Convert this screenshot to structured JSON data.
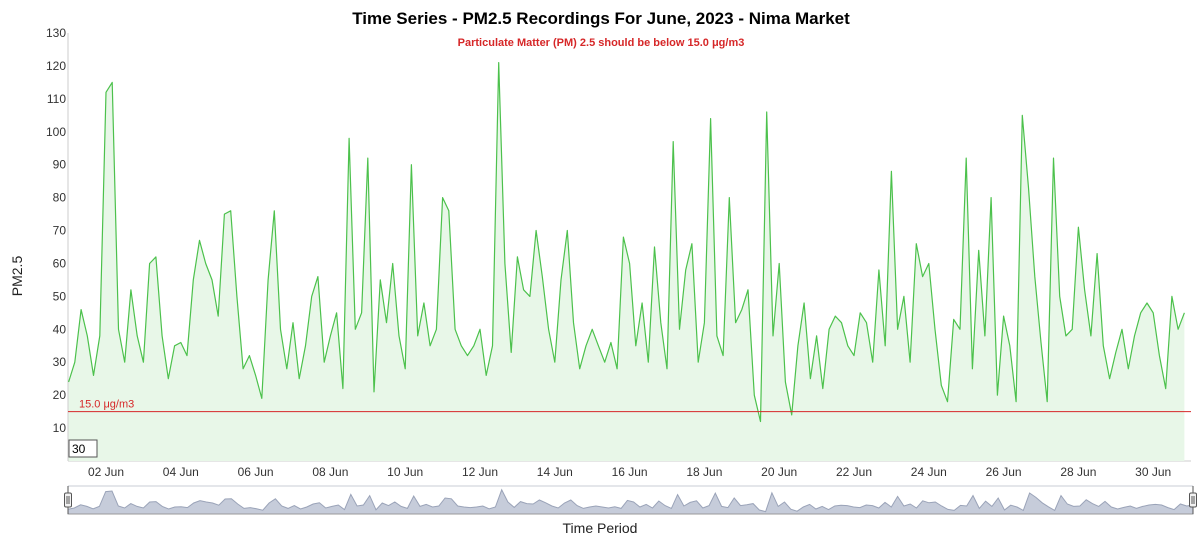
{
  "chart_data": {
    "type": "area",
    "title": "Time Series - PM2.5 Recordings For June, 2023 - Nima Market",
    "subtitle": "Particulate Matter (PM) 2.5 should be below 15.0 μg/m3",
    "xlabel": "Time Period",
    "ylabel": "PM2.5",
    "x_range": [
      "2023-06-01",
      "2023-06-30"
    ],
    "ylim": [
      0,
      130
    ],
    "y_ticks": [
      10,
      20,
      30,
      40,
      50,
      60,
      70,
      80,
      90,
      100,
      110,
      120,
      130
    ],
    "x_tick_labels": [
      "02 Jun",
      "04 Jun",
      "06 Jun",
      "08 Jun",
      "10 Jun",
      "12 Jun",
      "14 Jun",
      "16 Jun",
      "18 Jun",
      "20 Jun",
      "22 Jun",
      "24 Jun",
      "26 Jun",
      "28 Jun",
      "30 Jun"
    ],
    "threshold": {
      "value": 15.0,
      "label": "15.0 μg/m3",
      "color": "#d62728"
    },
    "value_box": "30",
    "series_color": "#4cc14c",
    "fill_color": "#e8f7e8",
    "navigator_color": "#9aa3b8",
    "series": [
      {
        "x": [
          "2023-06-01 00:00",
          "2023-06-01 04:00",
          "2023-06-01 08:00",
          "2023-06-01 12:00",
          "2023-06-01 16:00",
          "2023-06-01 20:00",
          "2023-06-02 00:00",
          "2023-06-02 04:00",
          "2023-06-02 08:00",
          "2023-06-02 12:00",
          "2023-06-02 16:00",
          "2023-06-02 20:00",
          "2023-06-03 00:00",
          "2023-06-03 04:00",
          "2023-06-03 08:00",
          "2023-06-03 12:00",
          "2023-06-03 16:00",
          "2023-06-03 20:00",
          "2023-06-04 00:00",
          "2023-06-04 04:00",
          "2023-06-04 08:00",
          "2023-06-04 12:00",
          "2023-06-04 16:00",
          "2023-06-04 20:00",
          "2023-06-05 00:00",
          "2023-06-05 04:00",
          "2023-06-05 08:00",
          "2023-06-05 12:00",
          "2023-06-05 16:00",
          "2023-06-05 20:00",
          "2023-06-06 00:00",
          "2023-06-06 04:00",
          "2023-06-06 08:00",
          "2023-06-06 12:00",
          "2023-06-06 16:00",
          "2023-06-06 20:00",
          "2023-06-07 00:00",
          "2023-06-07 04:00",
          "2023-06-07 08:00",
          "2023-06-07 12:00",
          "2023-06-07 16:00",
          "2023-06-07 20:00",
          "2023-06-08 00:00",
          "2023-06-08 04:00",
          "2023-06-08 08:00",
          "2023-06-08 12:00",
          "2023-06-08 16:00",
          "2023-06-08 20:00",
          "2023-06-09 00:00",
          "2023-06-09 04:00",
          "2023-06-09 08:00",
          "2023-06-09 12:00",
          "2023-06-09 16:00",
          "2023-06-09 20:00",
          "2023-06-10 00:00",
          "2023-06-10 04:00",
          "2023-06-10 08:00",
          "2023-06-10 12:00",
          "2023-06-10 16:00",
          "2023-06-10 20:00",
          "2023-06-11 00:00",
          "2023-06-11 04:00",
          "2023-06-11 08:00",
          "2023-06-11 12:00",
          "2023-06-11 16:00",
          "2023-06-11 20:00",
          "2023-06-12 00:00",
          "2023-06-12 04:00",
          "2023-06-12 08:00",
          "2023-06-12 12:00",
          "2023-06-12 16:00",
          "2023-06-12 20:00",
          "2023-06-13 00:00",
          "2023-06-13 04:00",
          "2023-06-13 08:00",
          "2023-06-13 12:00",
          "2023-06-13 16:00",
          "2023-06-13 20:00",
          "2023-06-14 00:00",
          "2023-06-14 04:00",
          "2023-06-14 08:00",
          "2023-06-14 12:00",
          "2023-06-14 16:00",
          "2023-06-14 20:00",
          "2023-06-15 00:00",
          "2023-06-15 04:00",
          "2023-06-15 08:00",
          "2023-06-15 12:00",
          "2023-06-15 16:00",
          "2023-06-15 20:00",
          "2023-06-16 00:00",
          "2023-06-16 04:00",
          "2023-06-16 08:00",
          "2023-06-16 12:00",
          "2023-06-16 16:00",
          "2023-06-16 20:00",
          "2023-06-17 00:00",
          "2023-06-17 04:00",
          "2023-06-17 08:00",
          "2023-06-17 12:00",
          "2023-06-17 16:00",
          "2023-06-17 20:00",
          "2023-06-18 00:00",
          "2023-06-18 04:00",
          "2023-06-18 08:00",
          "2023-06-18 12:00",
          "2023-06-18 16:00",
          "2023-06-18 20:00",
          "2023-06-19 00:00",
          "2023-06-19 04:00",
          "2023-06-19 08:00",
          "2023-06-19 12:00",
          "2023-06-19 16:00",
          "2023-06-19 20:00",
          "2023-06-20 00:00",
          "2023-06-20 04:00",
          "2023-06-20 08:00",
          "2023-06-20 12:00",
          "2023-06-20 16:00",
          "2023-06-20 20:00",
          "2023-06-21 00:00",
          "2023-06-21 04:00",
          "2023-06-21 08:00",
          "2023-06-21 12:00",
          "2023-06-21 16:00",
          "2023-06-21 20:00",
          "2023-06-22 00:00",
          "2023-06-22 04:00",
          "2023-06-22 08:00",
          "2023-06-22 12:00",
          "2023-06-22 16:00",
          "2023-06-22 20:00",
          "2023-06-23 00:00",
          "2023-06-23 04:00",
          "2023-06-23 08:00",
          "2023-06-23 12:00",
          "2023-06-23 16:00",
          "2023-06-23 20:00",
          "2023-06-24 00:00",
          "2023-06-24 04:00",
          "2023-06-24 08:00",
          "2023-06-24 12:00",
          "2023-06-24 16:00",
          "2023-06-24 20:00",
          "2023-06-25 00:00",
          "2023-06-25 04:00",
          "2023-06-25 08:00",
          "2023-06-25 12:00",
          "2023-06-25 16:00",
          "2023-06-25 20:00",
          "2023-06-26 00:00",
          "2023-06-26 04:00",
          "2023-06-26 08:00",
          "2023-06-26 12:00",
          "2023-06-26 16:00",
          "2023-06-26 20:00",
          "2023-06-27 00:00",
          "2023-06-27 04:00",
          "2023-06-27 08:00",
          "2023-06-27 12:00",
          "2023-06-27 16:00",
          "2023-06-27 20:00",
          "2023-06-28 00:00",
          "2023-06-28 04:00",
          "2023-06-28 08:00",
          "2023-06-28 12:00",
          "2023-06-28 16:00",
          "2023-06-28 20:00",
          "2023-06-29 00:00",
          "2023-06-29 04:00",
          "2023-06-29 08:00",
          "2023-06-29 12:00",
          "2023-06-29 16:00",
          "2023-06-29 20:00",
          "2023-06-30 00:00",
          "2023-06-30 04:00",
          "2023-06-30 08:00",
          "2023-06-30 12:00",
          "2023-06-30 16:00",
          "2023-06-30 20:00"
        ],
        "values": [
          24,
          30,
          46,
          38,
          26,
          38,
          112,
          115,
          40,
          30,
          52,
          38,
          30,
          60,
          62,
          38,
          25,
          35,
          36,
          32,
          55,
          67,
          60,
          55,
          44,
          75,
          76,
          50,
          28,
          32,
          26,
          19,
          55,
          76,
          40,
          28,
          42,
          25,
          35,
          50,
          56,
          30,
          38,
          45,
          22,
          98,
          40,
          45,
          92,
          21,
          55,
          42,
          60,
          38,
          28,
          90,
          38,
          48,
          35,
          40,
          80,
          76,
          40,
          35,
          32,
          35,
          40,
          26,
          35,
          121,
          60,
          33,
          62,
          52,
          50,
          70,
          56,
          40,
          30,
          55,
          70,
          42,
          28,
          35,
          40,
          35,
          30,
          36,
          28,
          68,
          60,
          35,
          48,
          30,
          65,
          42,
          28,
          97,
          40,
          58,
          66,
          30,
          42,
          104,
          38,
          32,
          80,
          42,
          46,
          52,
          20,
          12,
          106,
          38,
          60,
          24,
          14,
          35,
          48,
          25,
          38,
          22,
          40,
          44,
          42,
          35,
          32,
          45,
          42,
          30,
          58,
          35,
          88,
          40,
          50,
          30,
          66,
          56,
          60,
          40,
          23,
          18,
          43,
          40,
          92,
          28,
          64,
          38,
          80,
          20,
          44,
          35,
          18,
          105,
          83,
          56,
          36,
          18,
          92,
          50,
          38,
          40,
          71,
          52,
          38,
          63,
          35,
          25,
          33,
          40,
          28,
          38,
          45,
          48,
          45,
          32,
          22,
          50,
          40,
          45
        ]
      }
    ]
  }
}
